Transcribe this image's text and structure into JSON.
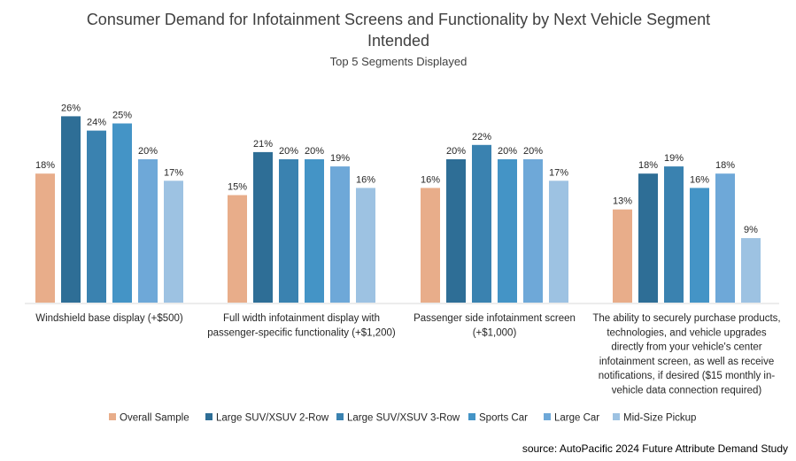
{
  "chart_data": {
    "type": "bar",
    "title": "Consumer Demand for Infotainment Screens and Functionality by Next Vehicle Segment Intended",
    "title_lines": [
      "Consumer Demand for Infotainment Screens and Functionality by Next Vehicle Segment",
      "Intended"
    ],
    "subtitle": "Top 5 Segments Displayed",
    "source": "source: AutoPacific 2024 Future Attribute Demand Study",
    "value_suffix": "%",
    "ylim": [
      0,
      30
    ],
    "grid": false,
    "legend_position": "bottom",
    "categories": [
      [
        "Windshield base display (+$500)"
      ],
      [
        "Full width infotainment display with",
        "passenger-specific functionality (+$1,200)"
      ],
      [
        "Passenger side infotainment screen",
        "(+$1,000)"
      ],
      [
        "The ability to securely purchase products,",
        "technologies, and vehicle upgrades",
        "directly from your vehicle's center",
        "infotainment screen, as well as receive",
        "notifications, if desired ($15 monthly in-",
        "vehicle data connection required)"
      ]
    ],
    "series": [
      {
        "name": "Overall Sample",
        "color": "#E8AD8A",
        "values": [
          18,
          15,
          16,
          13
        ]
      },
      {
        "name": "Large SUV/XSUV 2-Row",
        "color": "#2E6E96",
        "values": [
          26,
          21,
          20,
          18
        ]
      },
      {
        "name": "Large SUV/XSUV 3-Row",
        "color": "#3A82B0",
        "values": [
          24,
          20,
          22,
          19
        ]
      },
      {
        "name": "Sports Car",
        "color": "#4494C6",
        "values": [
          25,
          20,
          20,
          16
        ]
      },
      {
        "name": "Large Car",
        "color": "#6EA8D8",
        "values": [
          20,
          19,
          20,
          18
        ]
      },
      {
        "name": "Mid-Size Pickup",
        "color": "#9DC2E2",
        "values": [
          17,
          16,
          17,
          9
        ]
      }
    ]
  }
}
